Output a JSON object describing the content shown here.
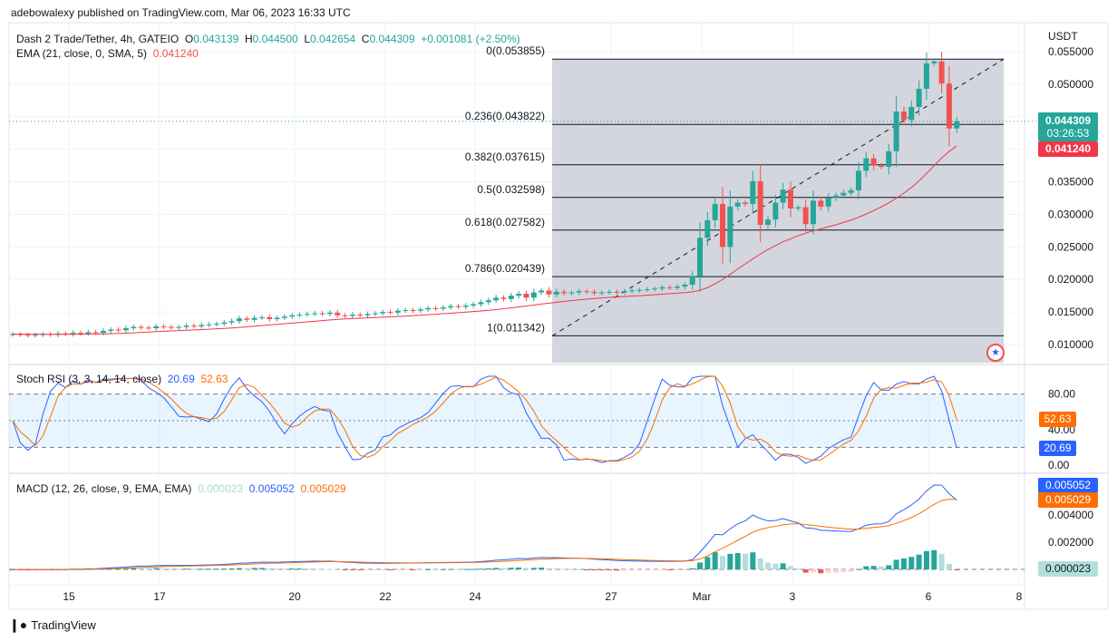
{
  "header": {
    "publisher_line": "adebowalexy published on TradingView.com, Mar 06, 2023 16:33 UTC"
  },
  "legend": {
    "symbol": "Dash 2 Trade/Tether, 4h, GATEIO",
    "o_label": "O",
    "o": "0.043139",
    "h_label": "H",
    "h": "0.044500",
    "l_label": "L",
    "l": "0.042654",
    "c_label": "C",
    "c": "0.044309",
    "change": "+0.001081 (+2.50%)",
    "ema_label": "EMA (21, close, 0, SMA, 5)",
    "ema_value": "0.041240"
  },
  "price_axis": {
    "currency": "USDT",
    "ticks": [
      "0.055000",
      "0.050000",
      "0.035000",
      "0.030000",
      "0.025000",
      "0.020000",
      "0.015000",
      "0.010000"
    ],
    "last_price": "0.044309",
    "countdown": "03:26:53",
    "ema_price": "0.041240"
  },
  "fib": [
    {
      "label": "0(0.053855)",
      "level": 0.053855
    },
    {
      "label": "0.236(0.043822)",
      "level": 0.043822
    },
    {
      "label": "0.382(0.037615)",
      "level": 0.037615
    },
    {
      "label": "0.5(0.032598)",
      "level": 0.032598
    },
    {
      "label": "0.618(0.027582)",
      "level": 0.027582
    },
    {
      "label": "0.786(0.020439)",
      "level": 0.020439
    },
    {
      "label": "1(0.011342)",
      "level": 0.011342
    }
  ],
  "time_axis": [
    "15",
    "17",
    "20",
    "22",
    "24",
    "27",
    "Mar",
    "3",
    "6",
    "8"
  ],
  "stoch": {
    "label": "Stoch RSI (3, 3, 14, 14, close)",
    "k": "20.69",
    "d": "52.63",
    "ticks": [
      "80.00",
      "40.00",
      "0.00"
    ]
  },
  "macd": {
    "label": "MACD (12, 26, close, 9, EMA, EMA)",
    "hist": "0.000023",
    "macd": "0.005052",
    "signal": "0.005029",
    "ticks": [
      "0.004000",
      "0.002000"
    ]
  },
  "footer": {
    "brand": "TradingView"
  },
  "colors": {
    "up": "#26a69a",
    "down": "#ef5350",
    "ema": "#f23645",
    "k": "#2962ff",
    "d": "#ff6d00",
    "fib_bg": "#d1d4dc"
  },
  "chart_data": {
    "type": "candlestick",
    "title": "Dash 2 Trade/Tether, 4h, GATEIO",
    "ylim": [
      0.0085,
      0.0565
    ],
    "closes": [
      0.0116,
      0.0115,
      0.0114,
      0.0115,
      0.0116,
      0.0115,
      0.0117,
      0.0116,
      0.0118,
      0.0117,
      0.0119,
      0.0118,
      0.0121,
      0.0123,
      0.0122,
      0.0125,
      0.0127,
      0.0126,
      0.0125,
      0.0128,
      0.0127,
      0.0126,
      0.0127,
      0.0129,
      0.0128,
      0.013,
      0.0131,
      0.0132,
      0.0134,
      0.0136,
      0.014,
      0.0138,
      0.0141,
      0.0142,
      0.0139,
      0.0141,
      0.0143,
      0.0145,
      0.0146,
      0.0147,
      0.0148,
      0.0147,
      0.0149,
      0.0145,
      0.0144,
      0.0146,
      0.0145,
      0.0147,
      0.0148,
      0.015,
      0.0149,
      0.0152,
      0.0153,
      0.0152,
      0.0154,
      0.0156,
      0.0155,
      0.0157,
      0.0159,
      0.0158,
      0.016,
      0.0162,
      0.0165,
      0.0168,
      0.0172,
      0.017,
      0.0175,
      0.0178,
      0.0172,
      0.018,
      0.0183,
      0.0177,
      0.0181,
      0.0179,
      0.018,
      0.0182,
      0.0181,
      0.0179,
      0.018,
      0.0181,
      0.018,
      0.0182,
      0.0183,
      0.0184,
      0.0185,
      0.0186,
      0.0188,
      0.0187,
      0.0189,
      0.0192,
      0.0205,
      0.0264,
      0.0291,
      0.0316,
      0.025,
      0.0312,
      0.0318,
      0.0316,
      0.0351,
      0.0284,
      0.0292,
      0.0318,
      0.0338,
      0.0309,
      0.0311,
      0.0285,
      0.0321,
      0.0312,
      0.0325,
      0.0329,
      0.0333,
      0.0337,
      0.0367,
      0.0386,
      0.0375,
      0.0373,
      0.0397,
      0.0458,
      0.0445,
      0.0465,
      0.0493,
      0.0532,
      0.0535,
      0.0501,
      0.0432,
      0.0443
    ]
  }
}
